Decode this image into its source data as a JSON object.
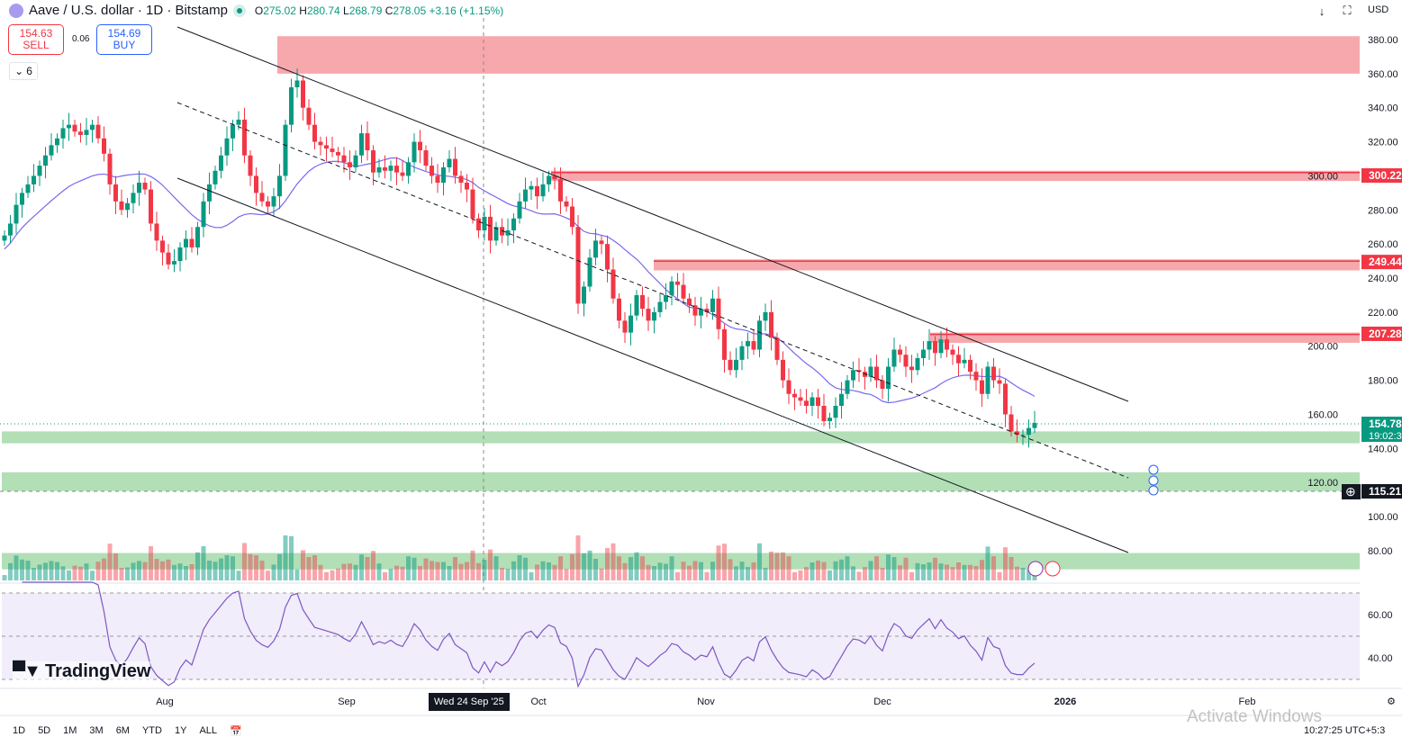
{
  "header": {
    "symbol": "Aave / U.S. dollar · 1D · Bitstamp",
    "open_label": "O",
    "open": "275.02",
    "high_label": "H",
    "high": "280.74",
    "low_label": "L",
    "low": "268.79",
    "close_label": "C",
    "close": "278.05",
    "change": "+3.16 (+1.15%)"
  },
  "trade": {
    "sell_price": "154.63",
    "sell_label": "SELL",
    "spread": "0.06",
    "buy_price": "154.69",
    "buy_label": "BUY"
  },
  "indicators_toggle": {
    "count": "6"
  },
  "toolbar": {
    "currency": "USD",
    "icons": [
      "download-icon",
      "fullscreen-icon"
    ]
  },
  "brand": {
    "name": "TradingView"
  },
  "colors": {
    "up": "#089981",
    "down": "#f23645",
    "resistance": "#f7a8ad",
    "support": "#b2dfb6",
    "ma": "#7b68ee",
    "rsi": "#7e57c2",
    "rsi_band": "#f1edfb"
  },
  "price_axis": {
    "ticks": [
      "380.00",
      "360.00",
      "340.00",
      "320.00",
      "300.00",
      "280.00",
      "260.00",
      "240.00",
      "220.00",
      "200.00",
      "180.00",
      "160.00",
      "140.00",
      "120.00",
      "100.00",
      "80.00"
    ],
    "labels": [
      {
        "text": "300.22",
        "type": "resistance"
      },
      {
        "text": "249.44",
        "type": "resistance"
      },
      {
        "text": "207.28",
        "type": "resistance"
      },
      {
        "text": "154.78",
        "sub": "19:02:3",
        "type": "last"
      },
      {
        "text": "115.21",
        "type": "crosshair"
      }
    ]
  },
  "rsi_axis": {
    "ticks": [
      "60.00",
      "40.00"
    ]
  },
  "time_axis": {
    "ticks": [
      "Aug",
      "Sep",
      "Oct",
      "Nov",
      "Dec",
      "2026",
      "Feb"
    ],
    "crosshair_label": "Wed 24 Sep '25"
  },
  "timeframes": [
    "1D",
    "5D",
    "1M",
    "3M",
    "6M",
    "YTD",
    "1Y",
    "ALL"
  ],
  "status": {
    "clock": "10:27:25 UTC+5:3",
    "watermark": "Activate Windows"
  },
  "chart_data": {
    "type": "candlestick",
    "first_date": "2025-07-04",
    "interval": "1D",
    "closes": [
      265,
      272,
      283,
      290,
      295,
      300,
      306,
      312,
      318,
      322,
      328,
      330,
      326,
      324,
      327,
      330,
      322,
      313,
      295,
      285,
      280,
      284,
      290,
      296,
      292,
      272,
      262,
      255,
      248,
      250,
      258,
      263,
      258,
      270,
      285,
      295,
      303,
      312,
      322,
      330,
      333,
      312,
      300,
      290,
      285,
      282,
      288,
      300,
      330,
      352,
      356,
      340,
      330,
      320,
      318,
      316,
      314,
      312,
      308,
      305,
      312,
      325,
      315,
      302,
      305,
      303,
      306,
      302,
      300,
      308,
      320,
      315,
      306,
      300,
      296,
      305,
      310,
      300,
      296,
      292,
      275,
      268,
      276,
      262,
      270,
      265,
      268,
      275,
      285,
      292,
      294,
      288,
      295,
      300,
      298,
      285,
      282,
      270,
      225,
      235,
      252,
      262,
      260,
      245,
      228,
      215,
      208,
      218,
      230,
      222,
      215,
      220,
      226,
      230,
      238,
      236,
      228,
      224,
      218,
      222,
      220,
      228,
      210,
      192,
      186,
      192,
      200,
      203,
      198,
      215,
      220,
      205,
      192,
      180,
      172,
      170,
      168,
      165,
      170,
      165,
      156,
      158,
      165,
      172,
      180,
      186,
      185,
      182,
      188,
      180,
      175,
      188,
      198,
      195,
      188,
      186,
      193,
      198,
      203,
      196,
      204,
      198,
      195,
      190,
      192,
      185,
      180,
      172,
      188,
      180,
      178,
      160,
      150,
      148,
      148,
      152,
      155
    ],
    "resistance_zones": [
      [
        360,
        382
      ],
      [
        297,
        303
      ],
      [
        244.5,
        251
      ],
      [
        202,
        208
      ]
    ],
    "support_zones": [
      [
        143,
        150
      ],
      [
        115,
        126
      ],
      [
        69,
        78.6
      ]
    ],
    "ylim": [
      60,
      390
    ],
    "rsi_levels": [
      30,
      50,
      70
    ]
  }
}
